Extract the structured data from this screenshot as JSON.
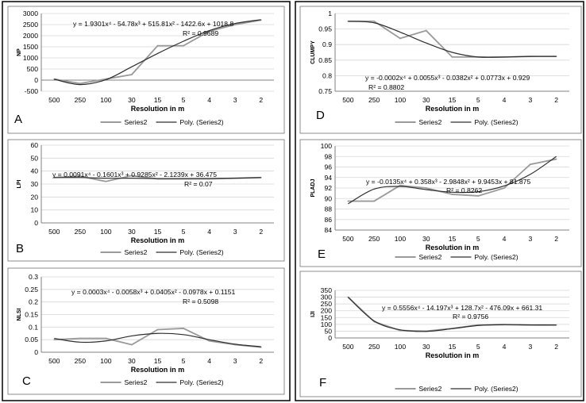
{
  "legend": {
    "series_label": "Series2",
    "fit_label": "Poly. (Series2)"
  },
  "colors": {
    "series": "#9a9a9a",
    "fit": "#2e2e2e",
    "grid": "#d6d6d6",
    "frame": "#000000",
    "axis": "#808080"
  },
  "chart_data": [
    {
      "id": "A",
      "letter": "A",
      "type": "line",
      "xlabel": "Resolution in m",
      "ylabel": "NP",
      "categories": [
        "500",
        "250",
        "100",
        "30",
        "15",
        "5",
        "4",
        "3",
        "2"
      ],
      "ylim": [
        -500,
        3000
      ],
      "yticks": [
        -500,
        0,
        500,
        1000,
        1500,
        2000,
        2500,
        3000
      ],
      "grid": true,
      "series": [
        {
          "name": "Series2",
          "values": [
            50,
            -150,
            50,
            250,
            1550,
            1550,
            2200,
            2500,
            2700
          ]
        },
        {
          "name": "Poly. (Series2)",
          "values": [
            40,
            -200,
            20,
            600,
            1200,
            1750,
            2230,
            2550,
            2720
          ]
        }
      ],
      "equation": "y = 1.9301x⁴ - 54.78x³ + 515.81x² - 1422.6x + 1018.8",
      "r2": "R² = 0.9689"
    },
    {
      "id": "B",
      "letter": "B",
      "type": "line",
      "xlabel": "Resolution in m",
      "ylabel": "LPI",
      "categories": [
        "500",
        "250",
        "100",
        "30",
        "15",
        "5",
        "4",
        "3",
        "2"
      ],
      "ylim": [
        0,
        60
      ],
      "yticks": [
        0,
        10,
        20,
        30,
        40,
        50,
        60
      ],
      "grid": true,
      "series": [
        {
          "name": "Series2",
          "values": [
            35,
            36,
            32,
            36.5,
            34,
            34,
            34,
            34.5,
            35
          ]
        },
        {
          "name": "Poly. (Series2)",
          "values": [
            35,
            35,
            34.5,
            34.5,
            34.2,
            34.2,
            34.3,
            34.5,
            35
          ]
        }
      ],
      "equation": "y = 0.0091x⁴ - 0.1601x³ + 0.9285x² - 2.1239x + 36.475",
      "r2": "R² = 0.07"
    },
    {
      "id": "C",
      "letter": "C",
      "type": "line",
      "xlabel": "Resolution in m",
      "ylabel": "NLSI",
      "categories": [
        "500",
        "250",
        "100",
        "30",
        "15",
        "5",
        "4",
        "3",
        "2"
      ],
      "ylim": [
        0,
        0.3
      ],
      "yticks": [
        0,
        0.05,
        0.1,
        0.15,
        0.2,
        0.25,
        0.3
      ],
      "grid": true,
      "series": [
        {
          "name": "Series2",
          "values": [
            0.05,
            0.055,
            0.055,
            0.03,
            0.09,
            0.095,
            0.045,
            0.03,
            0.02
          ]
        },
        {
          "name": "Poly. (Series2)",
          "values": [
            0.055,
            0.04,
            0.045,
            0.065,
            0.075,
            0.07,
            0.05,
            0.032,
            0.022
          ]
        }
      ],
      "equation": "y = 0.0003x⁴ - 0.0058x³ + 0.0405x² - 0.0978x + 0.1151",
      "r2": "R² = 0.5098"
    },
    {
      "id": "D",
      "letter": "D",
      "type": "line",
      "xlabel": "Resolution in m",
      "ylabel": "CLUMPY",
      "categories": [
        "500",
        "250",
        "100",
        "30",
        "15",
        "5",
        "4",
        "3",
        "2"
      ],
      "ylim": [
        0.75,
        1
      ],
      "yticks": [
        0.75,
        0.8,
        0.85,
        0.9,
        0.95,
        1
      ],
      "grid": true,
      "series": [
        {
          "name": "Series2",
          "values": [
            0.975,
            0.975,
            0.92,
            0.945,
            0.86,
            0.86,
            0.86,
            0.862,
            0.862
          ]
        },
        {
          "name": "Poly. (Series2)",
          "values": [
            0.975,
            0.97,
            0.94,
            0.905,
            0.875,
            0.86,
            0.86,
            0.862,
            0.862
          ]
        }
      ],
      "equation": "y = -0.0002x⁴ + 0.0055x³ - 0.0382x² + 0.0773x + 0.929",
      "r2": "R² = 0.8802"
    },
    {
      "id": "E",
      "letter": "E",
      "type": "line",
      "xlabel": "Resolution in m",
      "ylabel": "PLADJ",
      "categories": [
        "500",
        "250",
        "100",
        "30",
        "15",
        "5",
        "4",
        "3",
        "2"
      ],
      "ylim": [
        84,
        100
      ],
      "yticks": [
        84,
        86,
        88,
        90,
        92,
        94,
        96,
        98,
        100
      ],
      "grid": true,
      "series": [
        {
          "name": "Series2",
          "values": [
            89.5,
            89.5,
            92.5,
            92,
            90.8,
            90.5,
            92,
            96.5,
            97.5
          ]
        },
        {
          "name": "Poly. (Series2)",
          "values": [
            89,
            91.8,
            92.3,
            91.7,
            91.2,
            91.3,
            92.4,
            94.6,
            98
          ]
        }
      ],
      "equation": "y = -0.0135x⁴ + 0.358x³ - 2.9848x² + 9.9453x + 81.875",
      "r2": "R² = 0.8262"
    },
    {
      "id": "F",
      "letter": "F",
      "type": "line",
      "xlabel": "Resolution in m",
      "ylabel": "IJI",
      "categories": [
        "500",
        "250",
        "100",
        "30",
        "15",
        "5",
        "4",
        "3",
        "2"
      ],
      "ylim": [
        0,
        350
      ],
      "yticks": [
        0,
        50,
        100,
        150,
        200,
        250,
        300,
        350
      ],
      "grid": true,
      "series": [
        {
          "name": "Series2",
          "values": [
            300,
            120,
            55,
            50,
            70,
            95,
            98,
            95,
            95
          ]
        },
        {
          "name": "Poly. (Series2)",
          "values": [
            300,
            125,
            60,
            48,
            68,
            92,
            98,
            96,
            95
          ]
        }
      ],
      "equation": "y = 0.5556x⁴ - 14.197x³ + 128.7x² - 476.09x + 661.31",
      "r2": "R² = 0.9756"
    }
  ]
}
